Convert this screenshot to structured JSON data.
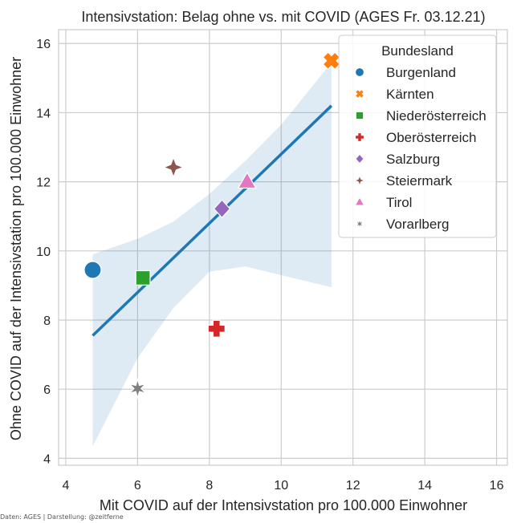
{
  "chart_data": {
    "type": "scatter",
    "title": "Intensivstation: Belag ohne vs. mit COVID (AGES Fr. 03.12.21)",
    "xlabel": "Mit COVID auf der Intensivstation pro 100.000 Einwohner",
    "ylabel": "Ohne COVID auf der Intensivstation pro 100.000 Einwohner",
    "xlim": [
      3.8,
      16.3
    ],
    "ylim": [
      3.8,
      16.4
    ],
    "xticks": [
      4,
      6,
      8,
      10,
      12,
      14,
      16
    ],
    "yticks": [
      4,
      6,
      8,
      10,
      12,
      14,
      16
    ],
    "grid": true,
    "background": "#eaeaf2",
    "legend": {
      "title": "Bundesland",
      "placement": "top-right"
    },
    "series": [
      {
        "name": "Burgenland",
        "marker": "circle",
        "color": "#1f77b4",
        "x": 4.75,
        "y": 9.45
      },
      {
        "name": "Kärnten",
        "marker": "x",
        "color": "#ff7f0e",
        "x": 11.4,
        "y": 15.5
      },
      {
        "name": "Niederösterreich",
        "marker": "square",
        "color": "#2ca02c",
        "x": 6.15,
        "y": 9.22
      },
      {
        "name": "Oberösterreich",
        "marker": "plus",
        "color": "#d62728",
        "x": 8.2,
        "y": 7.75
      },
      {
        "name": "Salzburg",
        "marker": "diamond",
        "color": "#9467bd",
        "x": 8.35,
        "y": 11.22
      },
      {
        "name": "Steiermark",
        "marker": "star4",
        "color": "#8c564b",
        "x": 7.0,
        "y": 12.42
      },
      {
        "name": "Tirol",
        "marker": "triangle",
        "color": "#e377c2",
        "x": 9.05,
        "y": 12.0
      },
      {
        "name": "Vorarlberg",
        "marker": "star6",
        "color": "#7f7f7f",
        "x": 6.0,
        "y": 6.02
      }
    ],
    "regression": {
      "color": "#1f77b4",
      "line": [
        [
          4.75,
          7.55
        ],
        [
          11.4,
          14.2
        ]
      ],
      "confidence_band": {
        "color": "#1f77b4",
        "x": [
          4.75,
          6.0,
          7.0,
          8.0,
          9.0,
          10.0,
          11.4
        ],
        "upper": [
          9.9,
          10.35,
          10.85,
          11.65,
          12.6,
          13.65,
          15.45
        ],
        "lower": [
          4.35,
          6.9,
          8.35,
          9.4,
          9.55,
          9.3,
          8.95
        ]
      }
    }
  },
  "footnote": "Daten: AGES | Darstellung: @zeitferne"
}
